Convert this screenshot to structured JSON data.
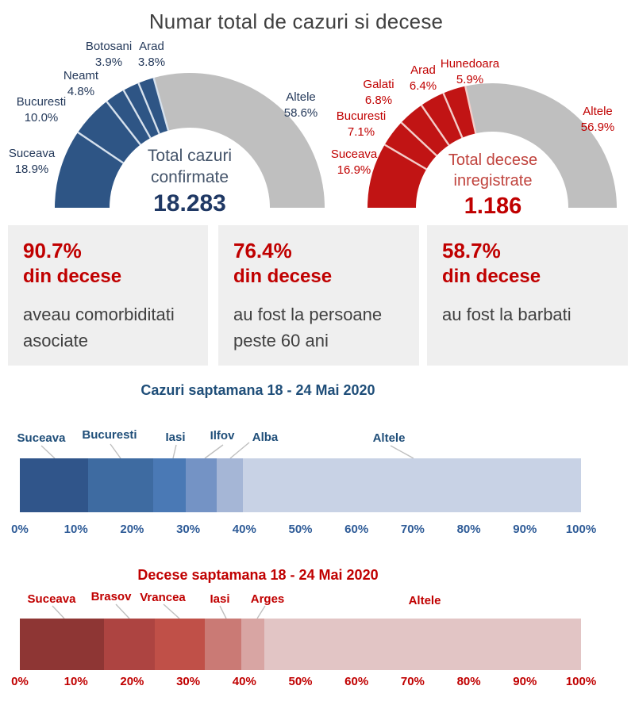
{
  "title": "Numar total de cazuri si decese",
  "colors": {
    "page_background": "#FFFFFF",
    "title_text": "#404040",
    "cases_accent": "#1F4E79",
    "deaths_accent": "#C00000",
    "rest_gray": "#BFBFBF",
    "stat_box_background": "#EFEFEF",
    "body_text": "#404040",
    "leader_line": "#BFBFBF"
  },
  "stat_boxes": [
    {
      "value": "90.7%",
      "subtitle": "din decese",
      "description": "aveau comorbiditati asociate"
    },
    {
      "value": "76.4%",
      "subtitle": "din decese",
      "description": "au fost la persoane peste 60 ani"
    },
    {
      "value": "58.7%",
      "subtitle": "din decese",
      "description": "au fost la barbati"
    }
  ],
  "chart_data": [
    {
      "id": "cases-donut",
      "type": "donut-half",
      "title": "Total cazuri confirmate",
      "center_label": [
        "Total cazuri",
        "confirmate"
      ],
      "total": "18.283",
      "label_color": "#24395A",
      "divider_color": "#D6E1ED",
      "slices": [
        {
          "label": "Suceava",
          "pct": 18.9,
          "color": "#2E5585"
        },
        {
          "label": "Bucuresti",
          "pct": 10.0,
          "color": "#2E5585"
        },
        {
          "label": "Neamt",
          "pct": 4.8,
          "color": "#2E5585"
        },
        {
          "label": "Botosani",
          "pct": 3.9,
          "color": "#2E5585"
        },
        {
          "label": "Arad",
          "pct": 3.8,
          "color": "#2E5585"
        },
        {
          "label": "Altele",
          "pct": 58.6,
          "color": "#BFBFBF"
        }
      ]
    },
    {
      "id": "deaths-donut",
      "type": "donut-half",
      "title": "Total decese inregistrate",
      "center_label": [
        "Total decese",
        "inregistrate"
      ],
      "total": "1.186",
      "label_color": "#C00000",
      "divider_color": "#F3CDC9",
      "slices": [
        {
          "label": "Suceava",
          "pct": 16.9,
          "color": "#C11414"
        },
        {
          "label": "Bucuresti",
          "pct": 7.1,
          "color": "#C11414"
        },
        {
          "label": "Galati",
          "pct": 6.8,
          "color": "#C11414"
        },
        {
          "label": "Arad",
          "pct": 6.4,
          "color": "#C11414"
        },
        {
          "label": "Hunedoara",
          "pct": 5.9,
          "color": "#C11414"
        },
        {
          "label": "Altele",
          "pct": 56.9,
          "color": "#BFBFBF"
        }
      ]
    },
    {
      "id": "cases-week-bar",
      "type": "stacked-bar-100",
      "title": "Cazuri saptamana 18 - 24 Mai 2020",
      "text_color": "#1F4E79",
      "axis_color": "#2E5B97",
      "axis_ticks": [
        "0%",
        "10%",
        "20%",
        "30%",
        "40%",
        "50%",
        "60%",
        "70%",
        "80%",
        "90%",
        "100%"
      ],
      "xlim": [
        0,
        100
      ],
      "segments": [
        {
          "label": "Suceava",
          "pct": 12.1,
          "color": "#30558A"
        },
        {
          "label": "Bucuresti",
          "pct": 11.6,
          "color": "#3E6BA1"
        },
        {
          "label": "Iasi",
          "pct": 5.9,
          "color": "#4A79B5"
        },
        {
          "label": "Ilfov",
          "pct": 5.5,
          "color": "#7493C5"
        },
        {
          "label": "Alba",
          "pct": 4.7,
          "color": "#A5B6D6"
        },
        {
          "label": "Altele",
          "pct": 60.2,
          "color": "#C8D2E5"
        }
      ]
    },
    {
      "id": "deaths-week-bar",
      "type": "stacked-bar-100",
      "title": "Decese saptamana 18 - 24 Mai 2020",
      "text_color": "#C00000",
      "axis_color": "#C00000",
      "axis_ticks": [
        "0%",
        "10%",
        "20%",
        "30%",
        "40%",
        "50%",
        "60%",
        "70%",
        "80%",
        "90%",
        "100%"
      ],
      "xlim": [
        0,
        100
      ],
      "segments": [
        {
          "label": "Suceava",
          "pct": 15.0,
          "color": "#8E3634"
        },
        {
          "label": "Brasov",
          "pct": 9.1,
          "color": "#AD4441"
        },
        {
          "label": "Vrancea",
          "pct": 8.9,
          "color": "#C05048"
        },
        {
          "label": "Iasi",
          "pct": 6.5,
          "color": "#CA7A75"
        },
        {
          "label": "Arges",
          "pct": 4.1,
          "color": "#D8A5A3"
        },
        {
          "label": "Altele",
          "pct": 56.4,
          "color": "#E2C5C5"
        }
      ]
    }
  ]
}
